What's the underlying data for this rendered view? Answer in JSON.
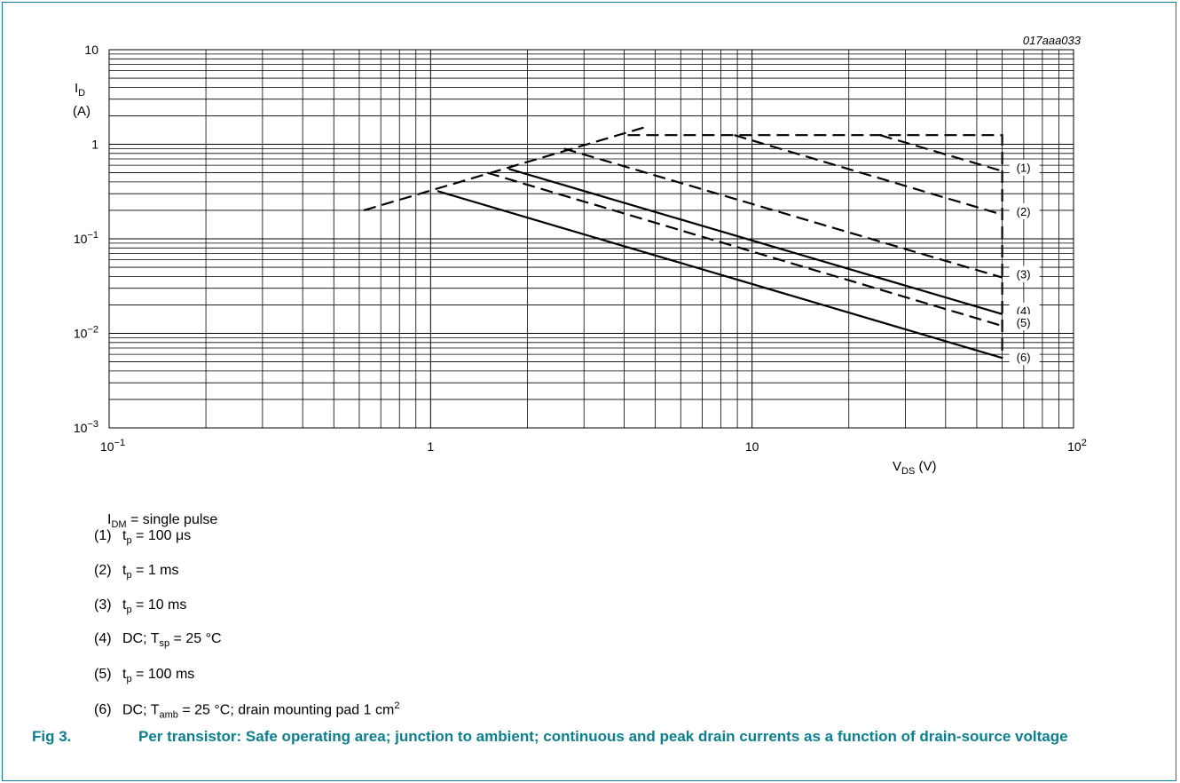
{
  "chart_data": {
    "type": "line",
    "code": "017aaa033",
    "x_scale": "log",
    "y_scale": "log",
    "xlim": [
      0.1,
      100
    ],
    "ylim": [
      0.001,
      10
    ],
    "x_ticks": [
      {
        "value": 0.1,
        "base": "10",
        "exp": "−1"
      },
      {
        "value": 1,
        "base": "1",
        "exp": ""
      },
      {
        "value": 10,
        "base": "10",
        "exp": ""
      },
      {
        "value": 100,
        "base": "10",
        "exp": "2"
      }
    ],
    "y_ticks": [
      {
        "value": 10,
        "base": "10",
        "exp": ""
      },
      {
        "value": 1,
        "base": "1",
        "exp": ""
      },
      {
        "value": 0.1,
        "base": "10",
        "exp": "−1"
      },
      {
        "value": 0.01,
        "base": "10",
        "exp": "−2"
      },
      {
        "value": 0.001,
        "base": "10",
        "exp": "−3"
      }
    ],
    "ylabel": {
      "main": "I",
      "sub": "D",
      "unit": "(A)"
    },
    "xlabel": {
      "main": "V",
      "sub": "DS",
      "unit": " (V)"
    },
    "limit_line": {
      "style": "dashed",
      "points": [
        [
          0.62,
          0.2
        ],
        [
          4.6,
          1.5
        ]
      ]
    },
    "boundary": {
      "style": "dashed",
      "points": [
        [
          4.1,
          1.25
        ],
        [
          60,
          1.25
        ],
        [
          60,
          0.0055
        ]
      ]
    },
    "series": [
      {
        "label": "(1)",
        "style": "dashed",
        "points": [
          [
            25,
            1.25
          ],
          [
            60,
            0.52
          ]
        ]
      },
      {
        "label": "(2)",
        "style": "dashed",
        "points": [
          [
            8.8,
            1.25
          ],
          [
            60,
            0.18
          ]
        ]
      },
      {
        "label": "(3)",
        "style": "dashed",
        "points": [
          [
            2.6,
            0.9
          ],
          [
            60,
            0.039
          ]
        ]
      },
      {
        "label": "(4)",
        "style": "solid",
        "points": [
          [
            1.75,
            0.55
          ],
          [
            60,
            0.016
          ]
        ]
      },
      {
        "label": "(5)",
        "style": "dashed",
        "points": [
          [
            1.5,
            0.5
          ],
          [
            60,
            0.012
          ]
        ]
      },
      {
        "label": "(6)",
        "style": "solid",
        "points": [
          [
            1.05,
            0.32
          ],
          [
            60,
            0.0055
          ]
        ]
      }
    ]
  },
  "legend": {
    "header": {
      "main": "I",
      "sub": "DM",
      "rest": " = single pulse"
    },
    "items": [
      {
        "num": "(1)",
        "pre": "t",
        "sub": "p",
        "post": " = 100 μs"
      },
      {
        "num": "(2)",
        "pre": "t",
        "sub": "p",
        "post": " = 1 ms"
      },
      {
        "num": "(3)",
        "pre": "t",
        "sub": "p",
        "post": " = 10 ms"
      },
      {
        "num": "(4)",
        "pre": "DC; T",
        "sub": "sp",
        "post": " = 25 °C"
      },
      {
        "num": "(5)",
        "pre": "t",
        "sub": "p",
        "post": " = 100 ms"
      },
      {
        "num": "(6)",
        "pre": "DC; T",
        "sub": "amb",
        "post": " = 25 °C; drain mounting pad 1 cm",
        "sup": "2"
      }
    ]
  },
  "caption": {
    "fig": "Fig 3.",
    "text": "Per transistor: Safe operating area; junction to ambient; continuous and peak drain currents as a function of drain-source voltage"
  },
  "colors": {
    "accent": "#0c7e8e",
    "line": "#000000",
    "grid": "#000000"
  }
}
